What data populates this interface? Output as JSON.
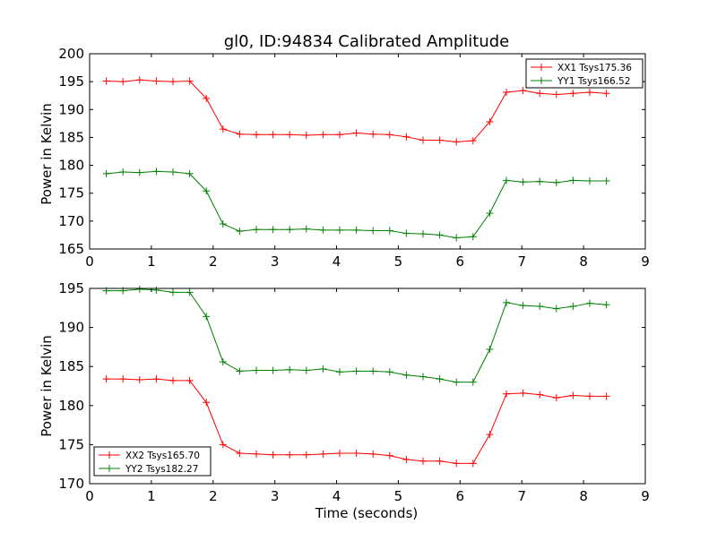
{
  "title": "gl0, ID:94834 Calibrated Amplitude",
  "colors": {
    "red": "#ff0000",
    "green": "#008000"
  },
  "chart_data": [
    {
      "type": "line",
      "xlabel": "",
      "ylabel": "Power in Kelvin",
      "xlim": [
        0,
        9
      ],
      "ylim": [
        165,
        200
      ],
      "xticks": [
        "0",
        "1",
        "2",
        "3",
        "4",
        "5",
        "6",
        "7",
        "8",
        "9"
      ],
      "yticks": [
        "165",
        "170",
        "175",
        "180",
        "185",
        "190",
        "195",
        "200"
      ],
      "legend_position": "top-right",
      "x": [
        0.27,
        0.54,
        0.81,
        1.08,
        1.35,
        1.62,
        1.89,
        2.16,
        2.43,
        2.7,
        2.97,
        3.24,
        3.51,
        3.78,
        4.05,
        4.32,
        4.59,
        4.86,
        5.13,
        5.4,
        5.67,
        5.94,
        6.21,
        6.48,
        6.75,
        7.02,
        7.29,
        7.56,
        7.83,
        8.1,
        8.37
      ],
      "series": [
        {
          "name": "XX1 Tsys175.36",
          "color": "#ff0000",
          "values": [
            195.1,
            195.0,
            195.3,
            195.1,
            195.0,
            195.1,
            192.0,
            186.5,
            185.6,
            185.5,
            185.5,
            185.5,
            185.4,
            185.5,
            185.5,
            185.8,
            185.6,
            185.5,
            185.1,
            184.5,
            184.5,
            184.2,
            184.4,
            187.8,
            193.1,
            193.4,
            192.9,
            192.7,
            192.9,
            193.1,
            192.9
          ]
        },
        {
          "name": "YY1 Tsys166.52",
          "color": "#008000",
          "values": [
            178.5,
            178.8,
            178.7,
            178.9,
            178.8,
            178.5,
            175.4,
            169.5,
            168.2,
            168.5,
            168.5,
            168.5,
            168.6,
            168.4,
            168.4,
            168.4,
            168.3,
            168.3,
            167.8,
            167.7,
            167.5,
            167.0,
            167.2,
            171.4,
            177.3,
            177.0,
            177.1,
            176.9,
            177.3,
            177.2,
            177.2
          ]
        }
      ]
    },
    {
      "type": "line",
      "xlabel": "Time (seconds)",
      "ylabel": "Power in Kelvin",
      "xlim": [
        0,
        9
      ],
      "ylim": [
        170,
        195
      ],
      "xticks": [
        "0",
        "1",
        "2",
        "3",
        "4",
        "5",
        "6",
        "7",
        "8",
        "9"
      ],
      "yticks": [
        "170",
        "175",
        "180",
        "185",
        "190",
        "195"
      ],
      "legend_position": "bottom-left",
      "x": [
        0.27,
        0.54,
        0.81,
        1.08,
        1.35,
        1.62,
        1.89,
        2.16,
        2.43,
        2.7,
        2.97,
        3.24,
        3.51,
        3.78,
        4.05,
        4.32,
        4.59,
        4.86,
        5.13,
        5.4,
        5.67,
        5.94,
        6.21,
        6.48,
        6.75,
        7.02,
        7.29,
        7.56,
        7.83,
        8.1,
        8.37
      ],
      "series": [
        {
          "name": "XX2 Tsys165.70",
          "color": "#ff0000",
          "values": [
            183.4,
            183.4,
            183.3,
            183.4,
            183.2,
            183.2,
            180.4,
            175.0,
            173.9,
            173.8,
            173.7,
            173.7,
            173.7,
            173.8,
            173.9,
            173.9,
            173.8,
            173.6,
            173.1,
            172.9,
            172.9,
            172.6,
            172.6,
            176.3,
            181.5,
            181.6,
            181.4,
            181.0,
            181.3,
            181.2,
            181.2
          ]
        },
        {
          "name": "YY2 Tsys182.27",
          "color": "#008000",
          "values": [
            194.7,
            194.7,
            194.9,
            194.8,
            194.5,
            194.5,
            191.4,
            185.6,
            184.4,
            184.5,
            184.5,
            184.6,
            184.5,
            184.7,
            184.3,
            184.4,
            184.4,
            184.3,
            183.9,
            183.7,
            183.4,
            183.0,
            183.0,
            187.2,
            193.2,
            192.8,
            192.7,
            192.4,
            192.7,
            193.1,
            192.9
          ]
        }
      ]
    }
  ]
}
